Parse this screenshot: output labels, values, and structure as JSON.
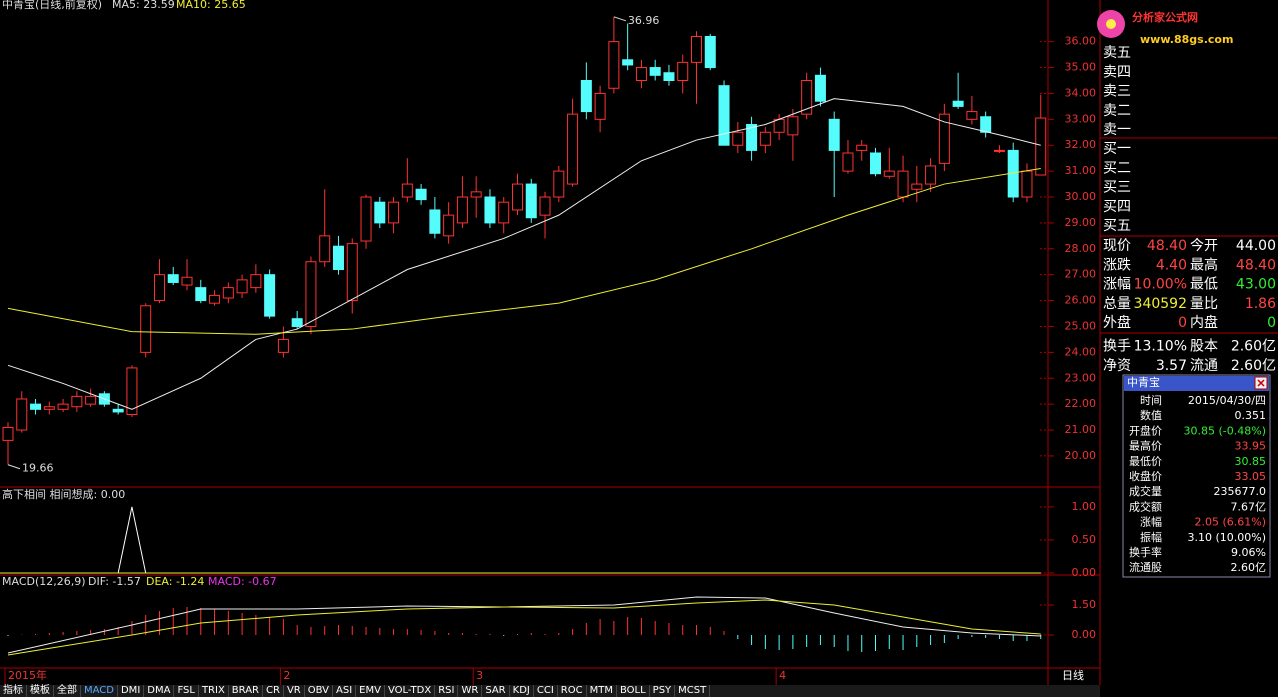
{
  "header": {
    "title": "中青宝(日线,前复权)",
    "ma5": "MA5: 23.59",
    "ma10": "MA10: 25.65"
  },
  "main": {
    "ylim": [
      18.8,
      37.3
    ],
    "yticks": [
      {
        "value": 20,
        "label": "20.00"
      },
      {
        "value": 21,
        "label": "21.00"
      },
      {
        "value": 22,
        "label": "22.00"
      },
      {
        "value": 23,
        "label": "23.00"
      },
      {
        "value": 24,
        "label": "24.00"
      },
      {
        "value": 25,
        "label": "25.00"
      },
      {
        "value": 26,
        "label": "26.00"
      },
      {
        "value": 27,
        "label": "27.00"
      },
      {
        "value": 28,
        "label": "28.00"
      },
      {
        "value": 29,
        "label": "29.00"
      },
      {
        "value": 30,
        "label": "30.00"
      },
      {
        "value": 31,
        "label": "31.00"
      },
      {
        "value": 32,
        "label": "32.00"
      },
      {
        "value": 33,
        "label": "33.00"
      },
      {
        "value": 34,
        "label": "34.00"
      },
      {
        "value": 35,
        "label": "35.00"
      },
      {
        "value": 36,
        "label": "36.00"
      }
    ],
    "candles": [
      [
        20.6,
        21.3,
        19.66,
        21.1
      ],
      [
        21.0,
        22.5,
        20.9,
        22.2
      ],
      [
        22.0,
        22.2,
        21.6,
        21.8
      ],
      [
        21.8,
        22.1,
        21.6,
        21.9
      ],
      [
        21.8,
        22.2,
        21.7,
        22.0
      ],
      [
        21.9,
        22.5,
        21.7,
        22.3
      ],
      [
        22.0,
        22.6,
        21.9,
        22.3
      ],
      [
        22.4,
        22.5,
        21.9,
        22.0
      ],
      [
        21.8,
        22.0,
        21.6,
        21.7
      ],
      [
        21.6,
        23.5,
        21.5,
        23.4
      ],
      [
        24.0,
        25.9,
        23.8,
        25.8
      ],
      [
        26.0,
        27.6,
        25.9,
        27.0
      ],
      [
        27.0,
        27.3,
        26.6,
        26.7
      ],
      [
        26.6,
        27.6,
        26.4,
        26.9
      ],
      [
        26.5,
        26.8,
        25.9,
        26.0
      ],
      [
        25.9,
        26.4,
        25.8,
        26.2
      ],
      [
        26.1,
        26.7,
        25.9,
        26.5
      ],
      [
        26.3,
        27.0,
        26.1,
        26.8
      ],
      [
        26.5,
        27.4,
        26.3,
        27.0
      ],
      [
        27.0,
        27.2,
        25.3,
        25.4
      ],
      [
        24.0,
        25.0,
        23.8,
        24.5
      ],
      [
        25.3,
        25.6,
        24.9,
        25.0
      ],
      [
        25.0,
        27.7,
        24.7,
        27.5
      ],
      [
        27.5,
        30.3,
        27.3,
        28.5
      ],
      [
        28.1,
        28.5,
        27.0,
        27.2
      ],
      [
        26.0,
        28.4,
        25.5,
        28.2
      ],
      [
        28.3,
        30.1,
        28.0,
        30.0
      ],
      [
        29.8,
        30.0,
        28.8,
        29.0
      ],
      [
        29.0,
        30.0,
        28.6,
        29.8
      ],
      [
        30.0,
        31.5,
        29.8,
        30.5
      ],
      [
        30.3,
        30.5,
        29.7,
        29.9
      ],
      [
        29.5,
        30.0,
        28.4,
        28.6
      ],
      [
        28.5,
        29.8,
        28.2,
        29.3
      ],
      [
        29.0,
        30.8,
        28.8,
        30.0
      ],
      [
        30.0,
        30.8,
        29.2,
        30.2
      ],
      [
        30.0,
        30.3,
        28.8,
        29.0
      ],
      [
        29.0,
        30.0,
        28.6,
        29.8
      ],
      [
        29.5,
        30.9,
        29.3,
        30.5
      ],
      [
        30.5,
        30.7,
        29.0,
        29.2
      ],
      [
        29.3,
        30.2,
        28.4,
        30.0
      ],
      [
        30.0,
        31.2,
        29.8,
        31.0
      ],
      [
        30.5,
        33.8,
        30.4,
        33.2
      ],
      [
        34.5,
        35.2,
        33.0,
        33.3
      ],
      [
        33.0,
        34.3,
        32.5,
        34.0
      ],
      [
        34.2,
        36.96,
        34.0,
        36.0
      ],
      [
        35.3,
        36.7,
        34.9,
        35.1
      ],
      [
        34.5,
        35.3,
        34.2,
        35.0
      ],
      [
        35.0,
        35.3,
        34.5,
        34.7
      ],
      [
        34.8,
        35.1,
        34.3,
        34.5
      ],
      [
        34.5,
        35.5,
        34.0,
        35.2
      ],
      [
        35.2,
        36.4,
        33.6,
        36.2
      ],
      [
        36.2,
        36.3,
        34.9,
        35.0
      ],
      [
        34.3,
        34.5,
        32.0,
        32.0
      ],
      [
        32.0,
        32.9,
        31.7,
        32.5
      ],
      [
        32.8,
        33.1,
        31.4,
        31.8
      ],
      [
        32.0,
        32.7,
        31.7,
        32.5
      ],
      [
        32.5,
        33.2,
        32.2,
        33.0
      ],
      [
        32.4,
        33.4,
        31.4,
        33.1
      ],
      [
        33.2,
        34.8,
        33.0,
        34.5
      ],
      [
        34.7,
        35.0,
        33.5,
        33.7
      ],
      [
        33.0,
        33.3,
        30.0,
        31.8
      ],
      [
        31.0,
        32.2,
        30.9,
        31.7
      ],
      [
        31.8,
        32.2,
        31.4,
        32.0
      ],
      [
        31.7,
        31.9,
        30.8,
        30.9
      ],
      [
        30.8,
        31.9,
        30.7,
        31.0
      ],
      [
        30.0,
        31.6,
        29.8,
        31.0
      ],
      [
        30.3,
        31.2,
        29.8,
        30.5
      ],
      [
        30.5,
        31.5,
        30.2,
        31.2
      ],
      [
        31.3,
        33.6,
        31.0,
        33.2
      ],
      [
        33.7,
        34.8,
        33.4,
        33.5
      ],
      [
        33.0,
        33.9,
        32.8,
        33.3
      ],
      [
        33.1,
        33.3,
        32.3,
        32.5
      ],
      [
        31.8,
        32.0,
        31.7,
        31.8
      ],
      [
        31.8,
        32.1,
        29.8,
        30.0
      ],
      [
        30.0,
        31.3,
        29.8,
        31.0
      ],
      [
        30.85,
        33.95,
        30.85,
        33.05
      ]
    ],
    "ma_white": {
      "x": [
        0,
        4,
        9,
        14,
        18,
        21,
        29,
        36,
        40,
        46,
        50,
        55,
        60,
        65,
        68,
        72,
        75
      ],
      "values": [
        23.5,
        22.8,
        21.8,
        23.0,
        24.5,
        24.9,
        27.2,
        28.4,
        29.3,
        31.4,
        32.2,
        32.8,
        33.8,
        33.5,
        32.9,
        32.4,
        32.0
      ]
    },
    "ma_yellow": {
      "x": [
        0,
        9,
        18,
        25,
        32,
        40,
        47,
        54,
        61,
        68,
        75
      ],
      "values": [
        25.7,
        24.8,
        24.7,
        24.9,
        25.4,
        25.9,
        26.8,
        28.0,
        29.3,
        30.5,
        31.1
      ]
    },
    "annotations": [
      {
        "index": 44,
        "value": 36.96,
        "label": "36.96"
      },
      {
        "index": 0,
        "value": 19.66,
        "label": "19.66"
      }
    ]
  },
  "indicator": {
    "title": "高下相间  相间想成: 0.00",
    "ylim": [
      -0.03,
      1.27
    ],
    "yticks": [
      {
        "value": 1,
        "label": "1.00"
      },
      {
        "value": 0.5,
        "label": "0.50"
      },
      {
        "value": 0,
        "label": "0.00"
      }
    ],
    "line": {
      "x": [
        0,
        8,
        9,
        10,
        75
      ],
      "values": [
        0,
        0,
        1,
        0,
        0
      ]
    }
  },
  "macd": {
    "title": "MACD(12,26,9)",
    "dif_label": "DIF: -1.57",
    "dea_label": "DEA: -1.24",
    "macd_label": "MACD: -0.67",
    "ylim": [
      -1.65,
      2.9
    ],
    "yticks": [
      {
        "value": 1.5,
        "label": "1.50"
      },
      {
        "value": 0,
        "label": "0.00"
      }
    ],
    "hist": [
      -0.05,
      0.02,
      0.05,
      0.1,
      0.15,
      0.2,
      0.25,
      0.3,
      0.4,
      0.7,
      1.0,
      1.2,
      1.35,
      1.4,
      1.35,
      1.3,
      1.2,
      1.1,
      1.0,
      0.9,
      0.8,
      0.5,
      0.4,
      0.45,
      0.5,
      0.45,
      0.4,
      0.35,
      0.3,
      0.3,
      0.25,
      0.2,
      0.1,
      0.1,
      0.05,
      0.05,
      -0.05,
      0.05,
      0.1,
      0.05,
      0.1,
      0.3,
      0.6,
      0.8,
      0.7,
      0.9,
      0.85,
      0.7,
      0.6,
      0.5,
      0.5,
      0.4,
      0.2,
      -0.2,
      -0.5,
      -0.7,
      -0.75,
      -0.7,
      -0.6,
      -0.5,
      -0.6,
      -0.8,
      -0.85,
      -0.8,
      -0.7,
      -0.75,
      -0.6,
      -0.5,
      -0.4,
      -0.2,
      -0.1,
      -0.15,
      -0.2,
      -0.3,
      -0.3,
      -0.2
    ],
    "dif": {
      "x": [
        0,
        9,
        14,
        21,
        29,
        36,
        44,
        50,
        55,
        60,
        65,
        70,
        75
      ],
      "values": [
        -0.9,
        0.5,
        1.3,
        1.3,
        1.45,
        1.4,
        1.5,
        1.9,
        1.85,
        1.1,
        0.4,
        0.1,
        -0.05
      ]
    },
    "dea": {
      "x": [
        0,
        9,
        14,
        21,
        29,
        36,
        44,
        50,
        55,
        60,
        65,
        70,
        75
      ],
      "values": [
        -1.0,
        0.0,
        0.6,
        1.0,
        1.3,
        1.4,
        1.35,
        1.6,
        1.75,
        1.5,
        0.9,
        0.3,
        0.05
      ]
    }
  },
  "xlabels": [
    {
      "index": 0,
      "label": "2015年"
    },
    {
      "index": 20,
      "label": "2"
    },
    {
      "index": 34,
      "label": "3"
    },
    {
      "index": 56,
      "label": "4"
    }
  ],
  "period": "日线",
  "tabs": [
    "指标",
    "模板",
    "全部",
    "MACD",
    "DMI",
    "DMA",
    "FSL",
    "TRIX",
    "BRAR",
    "CR",
    "VR",
    "OBV",
    "ASI",
    "EMV",
    "VOL-TDX",
    "RSI",
    "WR",
    "SAR",
    "KDJ",
    "CCI",
    "ROC",
    "MTM",
    "BOLL",
    "PSY",
    "MCST"
  ],
  "logo": {
    "name": "分析家公式网",
    "url": "www.88gs.com"
  },
  "sell": [
    "卖五",
    "卖四",
    "卖三",
    "卖二",
    "卖一"
  ],
  "buy": [
    "买一",
    "买二",
    "买三",
    "买四",
    "买五"
  ],
  "quote": [
    [
      "现价",
      "48.40",
      "今开",
      "44.00"
    ],
    [
      "涨跌",
      "4.40",
      "最高",
      "48.40"
    ],
    [
      "涨幅",
      "10.00%",
      "最低",
      "43.00"
    ],
    [
      "总量",
      "340592",
      "量比",
      "1.86"
    ],
    [
      "外盘",
      "0",
      "内盘",
      "0"
    ],
    [
      "换手",
      "13.10%",
      "股本",
      "2.60亿"
    ],
    [
      "净资",
      "3.57",
      "流通",
      "2.60亿"
    ]
  ],
  "popup": {
    "title": "中青宝",
    "rows": [
      [
        "时间",
        "2015/04/30/四"
      ],
      [
        "数值",
        "0.351"
      ],
      [
        "开盘价",
        "30.85 (-0.48%)"
      ],
      [
        "最高价",
        "33.95"
      ],
      [
        "最低价",
        "30.85"
      ],
      [
        "收盘价",
        "33.05"
      ],
      [
        "成交量",
        "235677.0"
      ],
      [
        "成交额",
        "7.67亿"
      ],
      [
        "涨幅",
        "2.05 (6.61%)"
      ],
      [
        "振幅",
        "3.10 (10.00%)"
      ],
      [
        "换手率",
        "9.06%"
      ],
      [
        "流通股",
        "2.60亿"
      ]
    ]
  }
}
